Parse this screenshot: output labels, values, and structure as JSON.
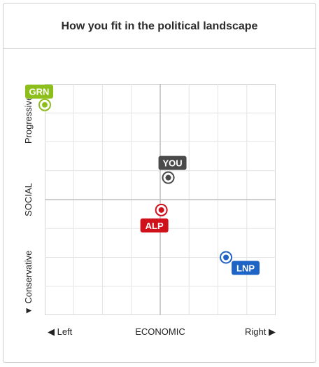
{
  "title": "How you fit in the political landscape",
  "colors": {
    "you": "#4a4a4a",
    "alp": "#d0101b",
    "lnp": "#1d64c4",
    "grn": "#8cbf1a",
    "grid": "#e4e4e4",
    "axis": "#bdbdbd"
  },
  "chart_data": {
    "type": "scatter",
    "title": "How you fit in the political landscape",
    "xlabel": "ECONOMIC",
    "ylabel": "SOCIAL",
    "x_range_labels": {
      "min": "◀ Left",
      "max": "Right ▶"
    },
    "y_range_labels": {
      "min": "▼ Conservative",
      "max": "Progressive ▲"
    },
    "xlim": [
      -1,
      1
    ],
    "ylim": [
      -1,
      1
    ],
    "grid": true,
    "points": [
      {
        "label": "GRN",
        "x": -1.0,
        "y": 0.82,
        "color": "#8cbf1a",
        "tag_side": "above"
      },
      {
        "label": "YOU",
        "x": 0.07,
        "y": 0.19,
        "color": "#4a4a4a",
        "tag_side": "above"
      },
      {
        "label": "ALP",
        "x": 0.01,
        "y": -0.09,
        "color": "#d0101b",
        "tag_side": "below"
      },
      {
        "label": "LNP",
        "x": 0.57,
        "y": -0.5,
        "color": "#1d64c4",
        "tag_side": "below"
      }
    ]
  }
}
